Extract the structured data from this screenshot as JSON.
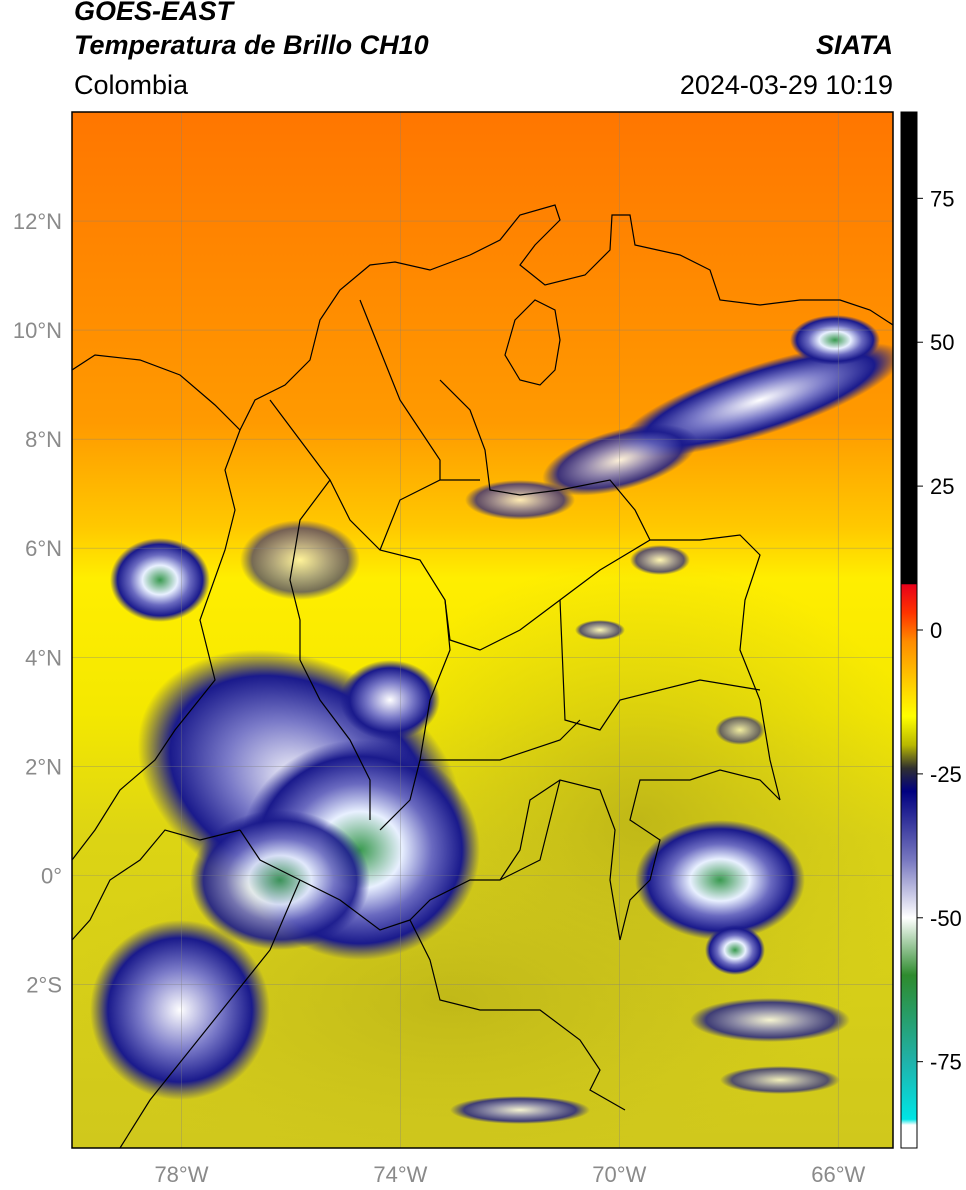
{
  "header": {
    "satellite": "GOES-EAST",
    "product": "Temperatura de Brillo CH10",
    "region": "Colombia",
    "organization": "SIATA",
    "datetime": "2024-03-29 10:19"
  },
  "map": {
    "lon_range": [
      -80,
      -65
    ],
    "lat_range": [
      -5,
      14
    ],
    "lon_ticks": [
      {
        "value": -78,
        "label": "78°W"
      },
      {
        "value": -74,
        "label": "74°W"
      },
      {
        "value": -70,
        "label": "70°W"
      },
      {
        "value": -66,
        "label": "66°W"
      }
    ],
    "lat_ticks": [
      {
        "value": 12,
        "label": "12°N"
      },
      {
        "value": 10,
        "label": "10°N"
      },
      {
        "value": 8,
        "label": "8°N"
      },
      {
        "value": 6,
        "label": "6°N"
      },
      {
        "value": 4,
        "label": "4°N"
      },
      {
        "value": 2,
        "label": "2°N"
      },
      {
        "value": 0,
        "label": "0°"
      },
      {
        "value": -2,
        "label": "2°S"
      }
    ],
    "gridlines": true,
    "colorbar": {
      "range": [
        -90,
        90
      ],
      "ticks": [
        {
          "value": 75,
          "label": "75"
        },
        {
          "value": 50,
          "label": "50"
        },
        {
          "value": 25,
          "label": "25"
        },
        {
          "value": 0,
          "label": "0"
        },
        {
          "value": -25,
          "label": "-25"
        },
        {
          "value": -50,
          "label": "-50"
        },
        {
          "value": -75,
          "label": "-75"
        }
      ],
      "stops": [
        {
          "value": 90,
          "color": "#000000"
        },
        {
          "value": 8,
          "color": "#000000"
        },
        {
          "value": 7.9,
          "color": "#e8001a"
        },
        {
          "value": 3,
          "color": "#ff3300"
        },
        {
          "value": -2,
          "color": "#ff8c00"
        },
        {
          "value": -10,
          "color": "#ffd400"
        },
        {
          "value": -15,
          "color": "#ffff00"
        },
        {
          "value": -20,
          "color": "#b8b800"
        },
        {
          "value": -24,
          "color": "#303030"
        },
        {
          "value": -28,
          "color": "#000080"
        },
        {
          "value": -40,
          "color": "#7878c0"
        },
        {
          "value": -50,
          "color": "#ffffff"
        },
        {
          "value": -60,
          "color": "#2e8b2e"
        },
        {
          "value": -75,
          "color": "#20b2aa"
        },
        {
          "value": -85,
          "color": "#00e5e5"
        },
        {
          "value": -86,
          "color": "#ffffff"
        },
        {
          "value": -90,
          "color": "#ffffff"
        }
      ]
    },
    "colors": {
      "warm": "#ff7a00",
      "mid": "#ffe600",
      "olive": "#d4cc1e",
      "cold": "#1a1a8c",
      "coldest": "#3a9a50"
    }
  }
}
